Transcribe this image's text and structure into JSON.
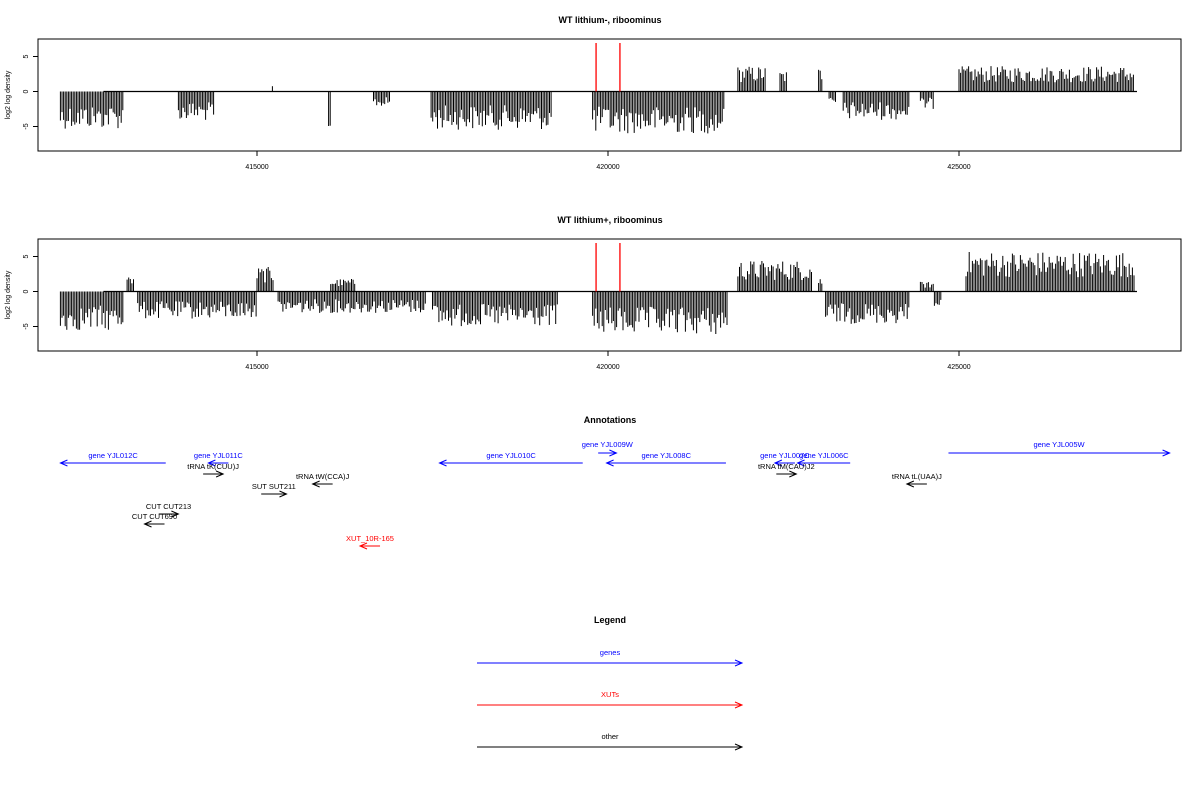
{
  "chart_data": [
    {
      "type": "bar",
      "title": "WT lithium-, riboominus",
      "ylabel": "log2 log density",
      "xlim": [
        412200,
        427600
      ],
      "ylim": [
        -8.5,
        7.5
      ],
      "x_ticks": [
        415000,
        420000,
        425000
      ],
      "x_tick_labels": [
        "415000",
        "420000",
        "425000"
      ],
      "y_ticks": [
        -5,
        0,
        5
      ],
      "y_tick_labels": [
        "-5",
        "0",
        "5"
      ],
      "markers": [
        419830,
        420170
      ],
      "marker_color": "#ff0000",
      "coverage": [
        {
          "start": 412200,
          "end": 413100,
          "mean": -3.8
        },
        {
          "start": 413880,
          "end": 414400,
          "mean": -3.0
        },
        {
          "start": 415220,
          "end": 415240,
          "mean": 1.5
        },
        {
          "start": 416020,
          "end": 416050,
          "mean": -6.5
        },
        {
          "start": 416660,
          "end": 416900,
          "mean": -1.6
        },
        {
          "start": 417480,
          "end": 419200,
          "mean": -3.9
        },
        {
          "start": 419780,
          "end": 421650,
          "mean": -4.3
        },
        {
          "start": 421850,
          "end": 422250,
          "mean": 2.6
        },
        {
          "start": 422450,
          "end": 422550,
          "mean": 2.2
        },
        {
          "start": 423000,
          "end": 423050,
          "mean": 2.5
        },
        {
          "start": 423150,
          "end": 423250,
          "mean": -1.6
        },
        {
          "start": 423350,
          "end": 424300,
          "mean": -2.9
        },
        {
          "start": 424450,
          "end": 424650,
          "mean": -1.8
        },
        {
          "start": 425000,
          "end": 427500,
          "mean": 2.6
        }
      ]
    },
    {
      "type": "bar",
      "title": "WT lithium+, riboominus",
      "ylabel": "log2 log density",
      "xlim": [
        412200,
        427600
      ],
      "ylim": [
        -8.5,
        7.5
      ],
      "x_ticks": [
        415000,
        420000,
        425000
      ],
      "x_tick_labels": [
        "415000",
        "420000",
        "425000"
      ],
      "y_ticks": [
        -5,
        0,
        5
      ],
      "y_tick_labels": [
        "-5",
        "0",
        "5"
      ],
      "markers": [
        419830,
        420170
      ],
      "marker_color": "#ff0000",
      "coverage": [
        {
          "start": 412200,
          "end": 413100,
          "mean": -4.0
        },
        {
          "start": 413150,
          "end": 413250,
          "mean": 1.5
        },
        {
          "start": 413300,
          "end": 415000,
          "mean": -2.8
        },
        {
          "start": 415000,
          "end": 415250,
          "mean": 2.5
        },
        {
          "start": 415300,
          "end": 417400,
          "mean": -2.2
        },
        {
          "start": 416050,
          "end": 416400,
          "mean": 1.3
        },
        {
          "start": 417500,
          "end": 419300,
          "mean": -3.6
        },
        {
          "start": 419780,
          "end": 421700,
          "mean": -4.4
        },
        {
          "start": 421850,
          "end": 422900,
          "mean": 3.2
        },
        {
          "start": 423000,
          "end": 423050,
          "mean": 1.5
        },
        {
          "start": 423100,
          "end": 424300,
          "mean": -3.3
        },
        {
          "start": 424450,
          "end": 424650,
          "mean": 1.0
        },
        {
          "start": 424650,
          "end": 424750,
          "mean": -2.0
        },
        {
          "start": 425100,
          "end": 427500,
          "mean": 4.1
        }
      ]
    }
  ],
  "annotations": {
    "title": "Annotations",
    "features": [
      {
        "label": "gene YJL012C",
        "color": "#0000ff",
        "start": 412200,
        "end": 413700,
        "strand": "-",
        "row": 1
      },
      {
        "label": "gene YJL011C",
        "color": "#0000ff",
        "start": 414400,
        "end": 414500,
        "strand": "-",
        "row": 1
      },
      {
        "label": "tRNA tK(CUU)J",
        "color": "#000000",
        "start": 414250,
        "end": 414500,
        "strand": "+",
        "row": 2
      },
      {
        "label": "tRNA tW(CCA)J",
        "color": "#000000",
        "start": 415870,
        "end": 416000,
        "strand": "-",
        "row": 3
      },
      {
        "label": "SUT SUT211",
        "color": "#000000",
        "start": 415060,
        "end": 415420,
        "strand": "+",
        "row": 4
      },
      {
        "label": "CUT CUT213",
        "color": "#000000",
        "start": 413600,
        "end": 413880,
        "strand": "+",
        "row": 5
      },
      {
        "label": "CUT CUT690",
        "color": "#000000",
        "start": 413420,
        "end": 413660,
        "strand": "-",
        "row": 6
      },
      {
        "label": "XUT_10R-165",
        "color": "#ff0000",
        "start": 416500,
        "end": 416720,
        "strand": "-",
        "row": 7
      },
      {
        "label": "gene YJL010C",
        "color": "#0000ff",
        "start": 417600,
        "end": 419640,
        "strand": "-",
        "row": 1
      },
      {
        "label": "gene YJL009W",
        "color": "#0000ff",
        "start": 419860,
        "end": 420120,
        "strand": "+",
        "row": 0
      },
      {
        "label": "gene YJL008C",
        "color": "#0000ff",
        "start": 419980,
        "end": 421680,
        "strand": "-",
        "row": 1
      },
      {
        "label": "gene YJL007C",
        "color": "#0000ff",
        "start": 422400,
        "end": 422640,
        "strand": "-",
        "row": 1
      },
      {
        "label": "gene YJL006C",
        "color": "#0000ff",
        "start": 422700,
        "end": 423450,
        "strand": "-",
        "row": 1
      },
      {
        "label": "tRNA tM(CAU)J2",
        "color": "#000000",
        "start": 422460,
        "end": 422620,
        "strand": "+",
        "row": 2
      },
      {
        "label": "tRNA tL(UAA)J",
        "color": "#000000",
        "start": 424340,
        "end": 424460,
        "strand": "-",
        "row": 3
      },
      {
        "label": "gene YJL005W",
        "color": "#0000ff",
        "start": 424850,
        "end": 428000,
        "strand": "+",
        "row": 0
      }
    ]
  },
  "legend": {
    "title": "Legend",
    "items": [
      {
        "label": "genes",
        "color": "#0000ff"
      },
      {
        "label": "XUTs",
        "color": "#ff0000"
      },
      {
        "label": "other",
        "color": "#000000"
      }
    ]
  }
}
